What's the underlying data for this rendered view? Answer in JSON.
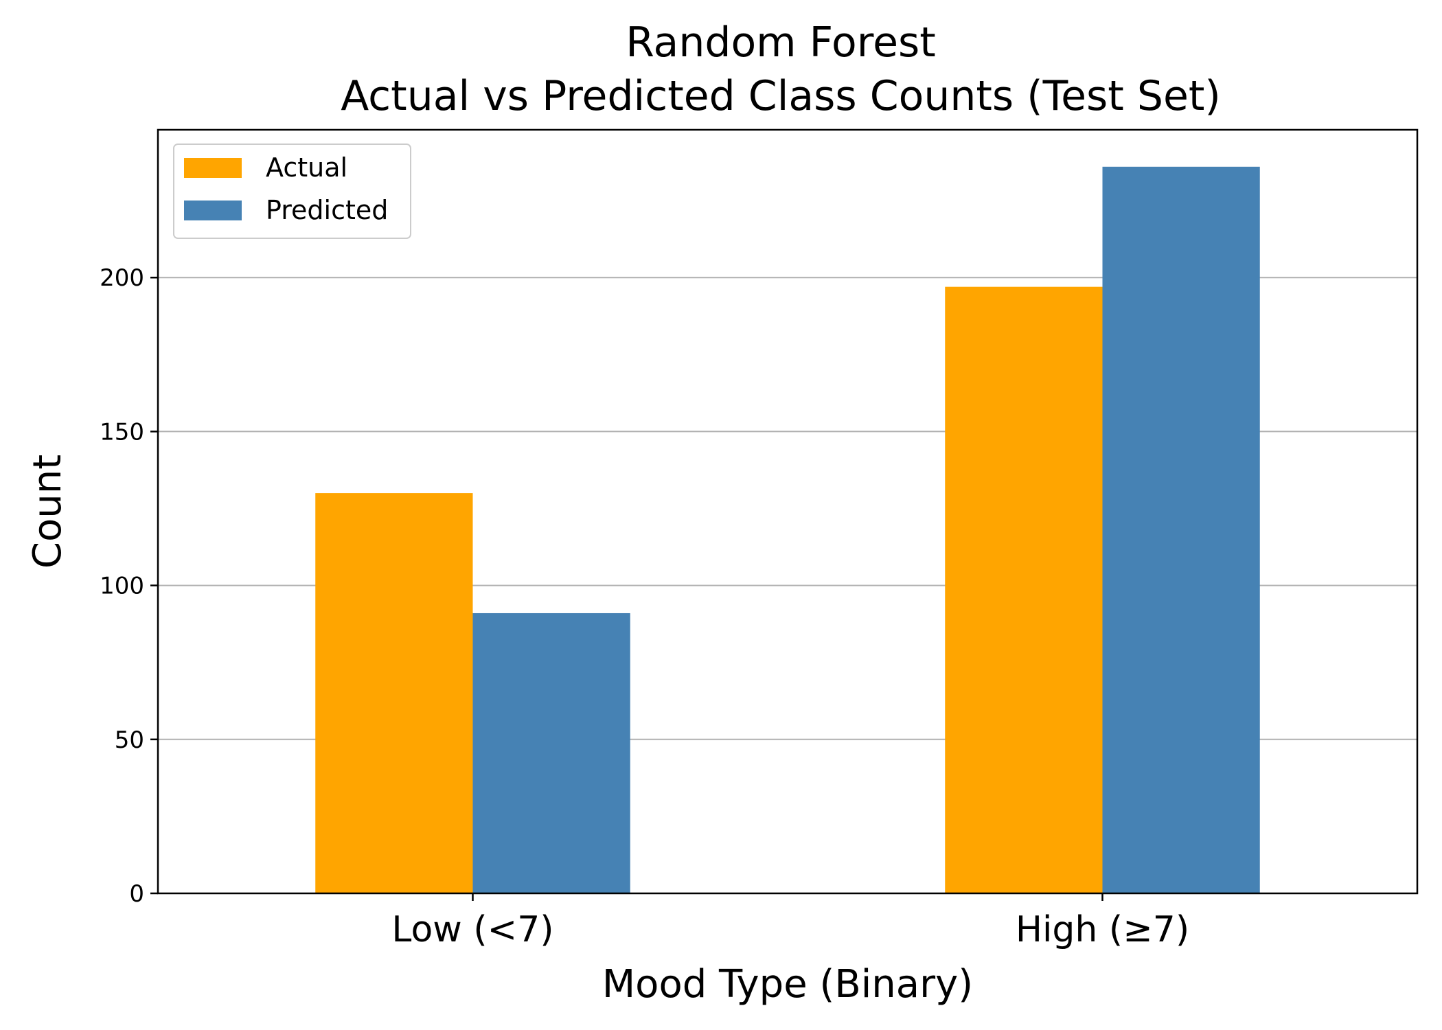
{
  "chart_data": {
    "type": "bar",
    "title_line1": "Random Forest",
    "title_line2": "Actual vs Predicted Class Counts (Test Set)",
    "xlabel": "Mood Type (Binary)",
    "ylabel": "Count",
    "categories": [
      "Low (<7)",
      "High (≥7)"
    ],
    "series": [
      {
        "name": "Actual",
        "color": "#FFA500",
        "values": [
          130,
          197
        ]
      },
      {
        "name": "Predicted",
        "color": "#4682B4",
        "values": [
          91,
          236
        ]
      }
    ],
    "yticks": [
      0,
      50,
      100,
      150,
      200
    ],
    "ylim": [
      0,
      248
    ],
    "grid": "y-axis horizontal lines",
    "legend_position": "top-left"
  }
}
